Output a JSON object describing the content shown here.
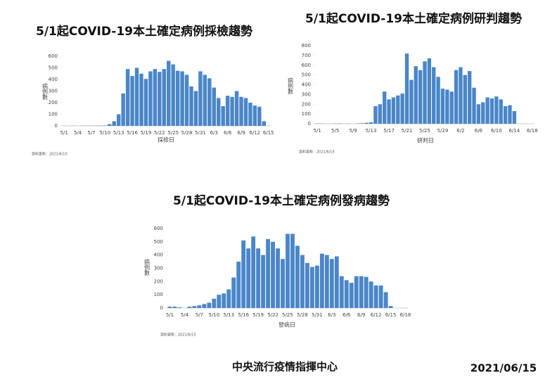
{
  "chart_data": [
    {
      "type": "bar",
      "title": "5/1起COVID-19本土確定病例採檢趨勢",
      "y_label": "病例數",
      "x_label": "採檢日",
      "note": "資料更新：2021/6/15",
      "color": "#4a86c8",
      "categories": [
        "5/1",
        null,
        null,
        "5/4",
        null,
        null,
        "5/7",
        null,
        null,
        "5/10",
        null,
        null,
        "5/13",
        null,
        null,
        "5/16",
        null,
        null,
        "5/19",
        null,
        null,
        "5/22",
        null,
        null,
        "5/25",
        null,
        null,
        "5/28",
        null,
        null,
        "5/31",
        null,
        null,
        "6/3",
        null,
        null,
        "6/6",
        null,
        null,
        "6/9",
        null,
        null,
        "6/12",
        null,
        null,
        "6/15"
      ],
      "values": [
        1,
        0,
        1,
        0,
        1,
        1,
        2,
        2,
        3,
        3,
        15,
        40,
        100,
        280,
        490,
        430,
        500,
        450,
        405,
        470,
        490,
        465,
        490,
        560,
        530,
        475,
        470,
        440,
        340,
        300,
        470,
        440,
        410,
        330,
        240,
        170,
        260,
        250,
        300,
        250,
        240,
        200,
        175,
        165,
        40,
        0
      ],
      "ylim": [
        0,
        600
      ],
      "yticks": [
        0,
        100,
        200,
        300,
        400,
        500,
        600
      ]
    },
    {
      "type": "bar",
      "title": "5/1起COVID-19本土確定病例研判趨勢",
      "y_label": "病例數",
      "x_label": "研判日",
      "note": "資料更新：2021/6/15",
      "color": "#4a86c8",
      "categories": [
        "5/1",
        null,
        null,
        null,
        "5/5",
        null,
        null,
        null,
        "5/9",
        null,
        null,
        null,
        "5/13",
        null,
        null,
        null,
        "5/17",
        null,
        null,
        null,
        "5/21",
        null,
        null,
        null,
        "5/25",
        null,
        null,
        null,
        "5/29",
        null,
        null,
        null,
        "6/2",
        null,
        null,
        null,
        "6/6",
        null,
        null,
        null,
        "6/10",
        null,
        null,
        null,
        "6/14",
        null,
        null,
        null,
        "6/18"
      ],
      "values": [
        3,
        2,
        0,
        0,
        2,
        3,
        0,
        2,
        0,
        3,
        5,
        10,
        15,
        180,
        200,
        330,
        250,
        270,
        290,
        310,
        720,
        450,
        590,
        550,
        640,
        670,
        580,
        480,
        360,
        350,
        330,
        550,
        580,
        500,
        540,
        370,
        200,
        220,
        270,
        260,
        280,
        250,
        180,
        190,
        130,
        0,
        0,
        0,
        0
      ],
      "ylim": [
        0,
        800
      ],
      "yticks": [
        0,
        100,
        200,
        300,
        400,
        500,
        600,
        700,
        800
      ]
    },
    {
      "type": "bar",
      "title": "5/1起COVID-19本土確定病例發病趨勢",
      "y_label": "病例數",
      "x_label": "發病日",
      "note": "資料更新：2021/6/15",
      "color": "#4a86c8",
      "categories": [
        "5/1",
        null,
        null,
        "5/4",
        null,
        null,
        "5/7",
        null,
        null,
        "5/10",
        null,
        null,
        "5/13",
        null,
        null,
        "5/16",
        null,
        null,
        "5/19",
        null,
        null,
        "5/22",
        null,
        null,
        "5/25",
        null,
        null,
        "5/28",
        null,
        null,
        "5/31",
        null,
        null,
        "6/3",
        null,
        null,
        "6/6",
        null,
        null,
        "6/9",
        null,
        null,
        "6/12",
        null,
        null,
        "6/15",
        null,
        null,
        "6/18"
      ],
      "values": [
        10,
        10,
        5,
        0,
        10,
        15,
        20,
        30,
        40,
        70,
        100,
        110,
        140,
        230,
        350,
        510,
        450,
        540,
        450,
        400,
        520,
        500,
        450,
        370,
        560,
        560,
        470,
        400,
        340,
        310,
        320,
        410,
        400,
        370,
        390,
        240,
        210,
        190,
        240,
        240,
        235,
        200,
        170,
        170,
        120,
        15,
        0,
        0,
        0
      ],
      "ylim": [
        0,
        600
      ],
      "yticks": [
        0,
        100,
        200,
        300,
        400,
        500,
        600
      ]
    }
  ],
  "footer": {
    "organization": "中央流行疫情指揮中心",
    "date": "2021/06/15"
  }
}
